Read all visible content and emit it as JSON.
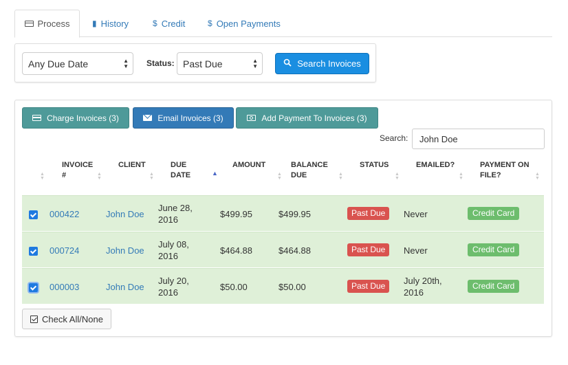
{
  "tabs": {
    "process": "Process",
    "history": "History",
    "credit": "Credit",
    "open_payments": "Open Payments"
  },
  "filter": {
    "due_date_value": "Any Due Date",
    "status_label": "Status:",
    "status_value": "Past Due",
    "search_button": "Search Invoices"
  },
  "actions": {
    "charge": "Charge Invoices (3)",
    "email": "Email Invoices (3)",
    "add_payment": "Add Payment To Invoices (3)"
  },
  "search": {
    "label": "Search:",
    "value": "John Doe"
  },
  "table": {
    "headers": {
      "invoice_1": "INVOICE",
      "invoice_2": "#",
      "client": "CLIENT",
      "due_1": "DUE",
      "due_2": "DATE",
      "amount": "AMOUNT",
      "balance_1": "BALANCE",
      "balance_2": "DUE",
      "status": "STATUS",
      "emailed": "EMAILED?",
      "payment_1": "PAYMENT ON",
      "payment_2": "FILE?"
    },
    "rows": [
      {
        "invoice": "000422",
        "client": "John Doe",
        "due_1": "June 28,",
        "due_2": "2016",
        "amount": "$499.95",
        "balance": "$499.95",
        "status": "Past Due",
        "emailed_1": "Never",
        "emailed_2": "",
        "payment": "Credit Card",
        "checked": true
      },
      {
        "invoice": "000724",
        "client": "John Doe",
        "due_1": "July 08,",
        "due_2": "2016",
        "amount": "$464.88",
        "balance": "$464.88",
        "status": "Past Due",
        "emailed_1": "Never",
        "emailed_2": "",
        "payment": "Credit Card",
        "checked": true
      },
      {
        "invoice": "000003",
        "client": "John Doe",
        "due_1": "July 20,",
        "due_2": "2016",
        "amount": "$50.00",
        "balance": "$50.00",
        "status": "Past Due",
        "emailed_1": "July 20th,",
        "emailed_2": "2016",
        "payment": "Credit Card",
        "checked": true
      }
    ]
  },
  "check_all_label": "Check All/None",
  "colors": {
    "link": "#337ab7",
    "row_success": "#dff0d8",
    "danger": "#d9534f",
    "success": "#6dbd6d",
    "teal": "#4e9a99",
    "primary": "#337ab7",
    "search_button": "#1a8ee1"
  }
}
